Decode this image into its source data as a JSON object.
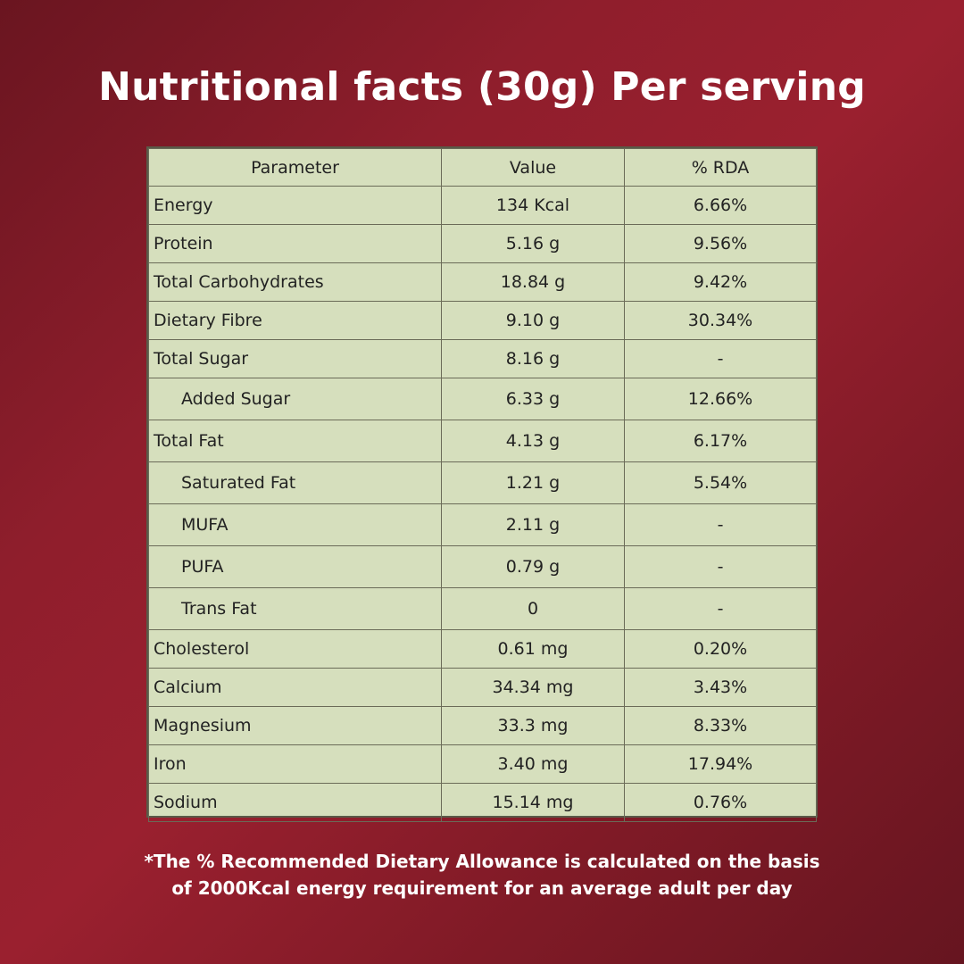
{
  "title": "Nutritional facts (30g) Per serving",
  "table": {
    "headers": [
      "Parameter",
      "Value",
      "% RDA"
    ],
    "rows": [
      {
        "parameter": "Energy",
        "value": "134 Kcal",
        "rda": "6.66%"
      },
      {
        "parameter": "Protein",
        "value": "5.16 g",
        "rda": "9.56%"
      },
      {
        "parameter": "Total Carbohydrates",
        "value": "18.84 g",
        "rda": "9.42%"
      },
      {
        "parameter": "Dietary Fibre",
        "value": "9.10 g",
        "rda": "30.34%"
      },
      {
        "parameter": "Total Sugar",
        "value": "8.16 g",
        "rda": "-"
      },
      {
        "parameter": "Added Sugar",
        "value": "6.33 g",
        "rda": "12.66%"
      },
      {
        "parameter": "Total Fat",
        "value": "4.13 g",
        "rda": "6.17%"
      },
      {
        "parameter": "Saturated Fat",
        "value": "1.21 g",
        "rda": "5.54%"
      },
      {
        "parameter": "MUFA",
        "value": "2.11 g",
        "rda": "-"
      },
      {
        "parameter": "PUFA",
        "value": "0.79 g",
        "rda": "-"
      },
      {
        "parameter": "Trans Fat",
        "value": "0",
        "rda": "-"
      },
      {
        "parameter": "Cholesterol",
        "value": "0.61 mg",
        "rda": "0.20%"
      },
      {
        "parameter": "Calcium",
        "value": "34.34 mg",
        "rda": "3.43%"
      },
      {
        "parameter": "Magnesium",
        "value": "33.3 mg",
        "rda": "8.33%"
      },
      {
        "parameter": "Iron",
        "value": "3.40 mg",
        "rda": "17.94%"
      },
      {
        "parameter": "Sodium",
        "value": "15.14 mg",
        "rda": "0.76%"
      }
    ]
  },
  "footnote": {
    "line1": "*The % Recommended Dietary Allowance is calculated on the basis",
    "line2": "of 2000Kcal energy requirement for an average adult per day"
  },
  "colors": {
    "background": "#8f1e2c",
    "table_fill": "#d6dfbd",
    "text_light": "#ffffff"
  }
}
